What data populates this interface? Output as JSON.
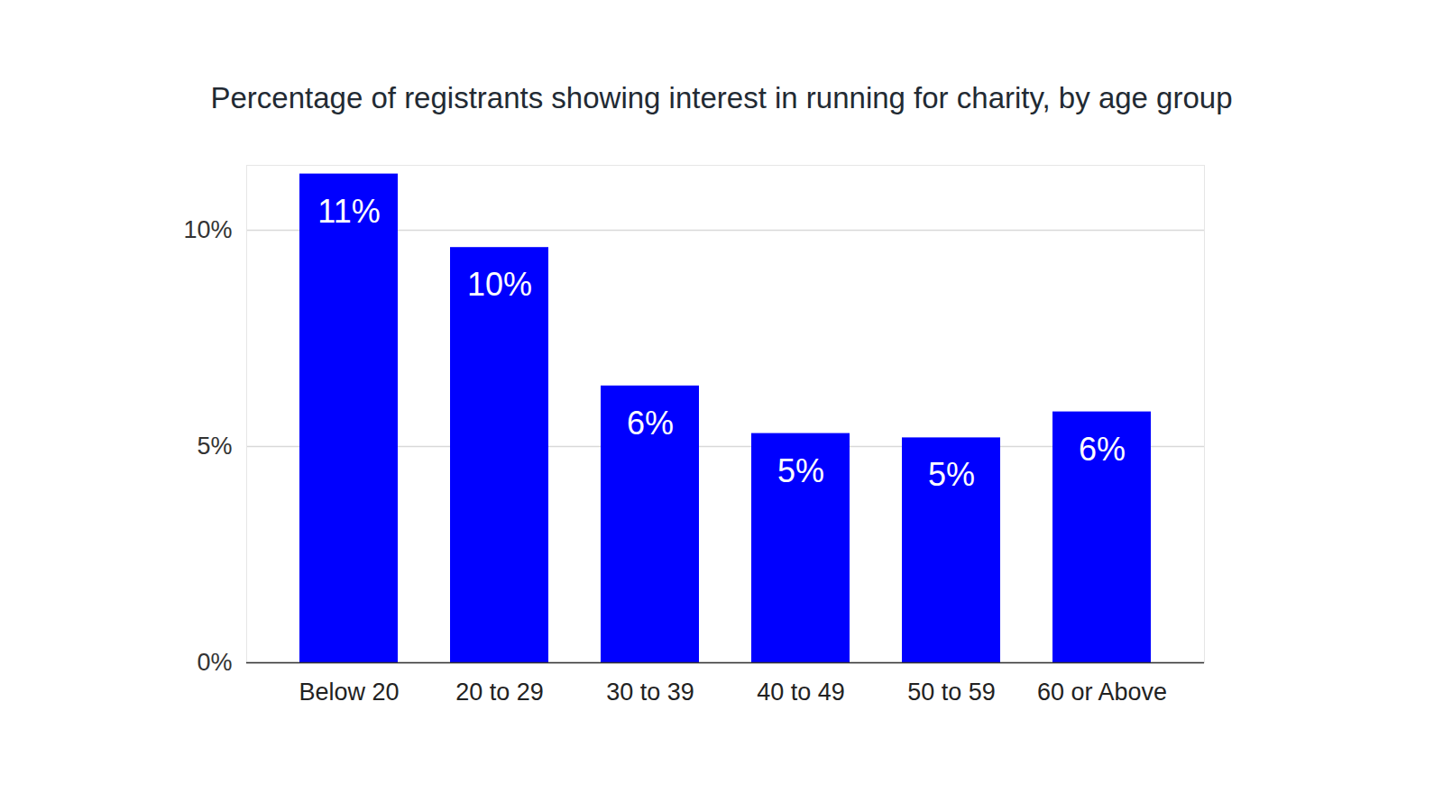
{
  "chart_data": {
    "type": "bar",
    "title": "Percentage of registrants showing interest in running for charity, by age group",
    "categories": [
      "Below 20",
      "20 to 29",
      "30 to 39",
      "40 to 49",
      "50 to 59",
      "60 or Above"
    ],
    "values": [
      11.3,
      9.6,
      6.4,
      5.3,
      5.2,
      5.8
    ],
    "value_labels": [
      "11%",
      "10%",
      "6%",
      "5%",
      "5%",
      "6%"
    ],
    "color": "#0000ff",
    "ylim": [
      0,
      11.5
    ],
    "yticks": [
      {
        "value": 0,
        "label": "0%"
      },
      {
        "value": 5,
        "label": "5%"
      },
      {
        "value": 10,
        "label": "10%"
      }
    ],
    "grid": true,
    "data_labels": true
  }
}
